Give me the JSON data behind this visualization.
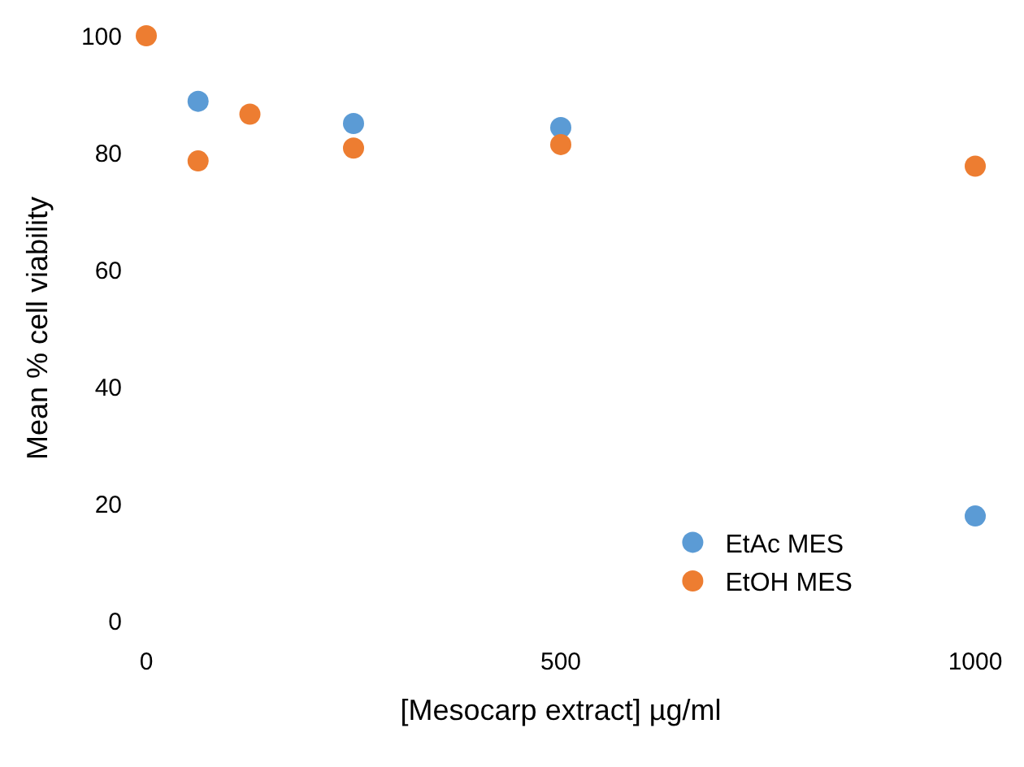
{
  "chart_data": {
    "type": "scatter",
    "xlabel": "[Mesocarp extract] µg/ml",
    "ylabel": "Mean % cell viability",
    "x": [
      0,
      62.5,
      125,
      250,
      500,
      1000
    ],
    "series": [
      {
        "name": "EtAc MES",
        "color": "#5b9bd5",
        "values": [
          null,
          88.8,
          null,
          85,
          84.3,
          17.9
        ]
      },
      {
        "name": "EtOH MES",
        "color": "#ed7d31",
        "values": [
          100,
          78.6,
          86.6,
          80.8,
          81.4,
          77.7
        ]
      }
    ],
    "xlim": [
      0,
      1000
    ],
    "xticks": [
      0,
      500,
      1000
    ],
    "ylim": [
      0,
      100
    ],
    "yticks": [
      0,
      20,
      40,
      60,
      80,
      100
    ],
    "legend": "bottom right",
    "marker": "circle"
  }
}
